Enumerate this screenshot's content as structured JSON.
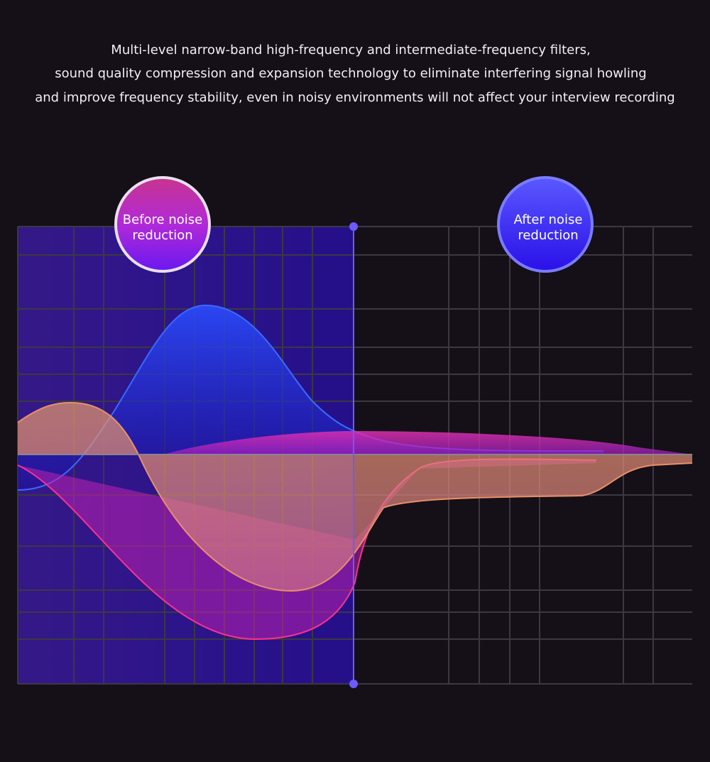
{
  "description": {
    "lines": [
      "Multi-level narrow-band high-frequency and intermediate-frequency filters,",
      "sound quality compression and expansion technology to eliminate interfering signal howling",
      "and improve frequency stability, even in noisy environments will not affect your interview recording"
    ]
  },
  "badges": {
    "before": {
      "lines": [
        "Before noise",
        "reduction"
      ]
    },
    "after": {
      "lines": [
        "After noise",
        "reduction"
      ]
    }
  }
}
